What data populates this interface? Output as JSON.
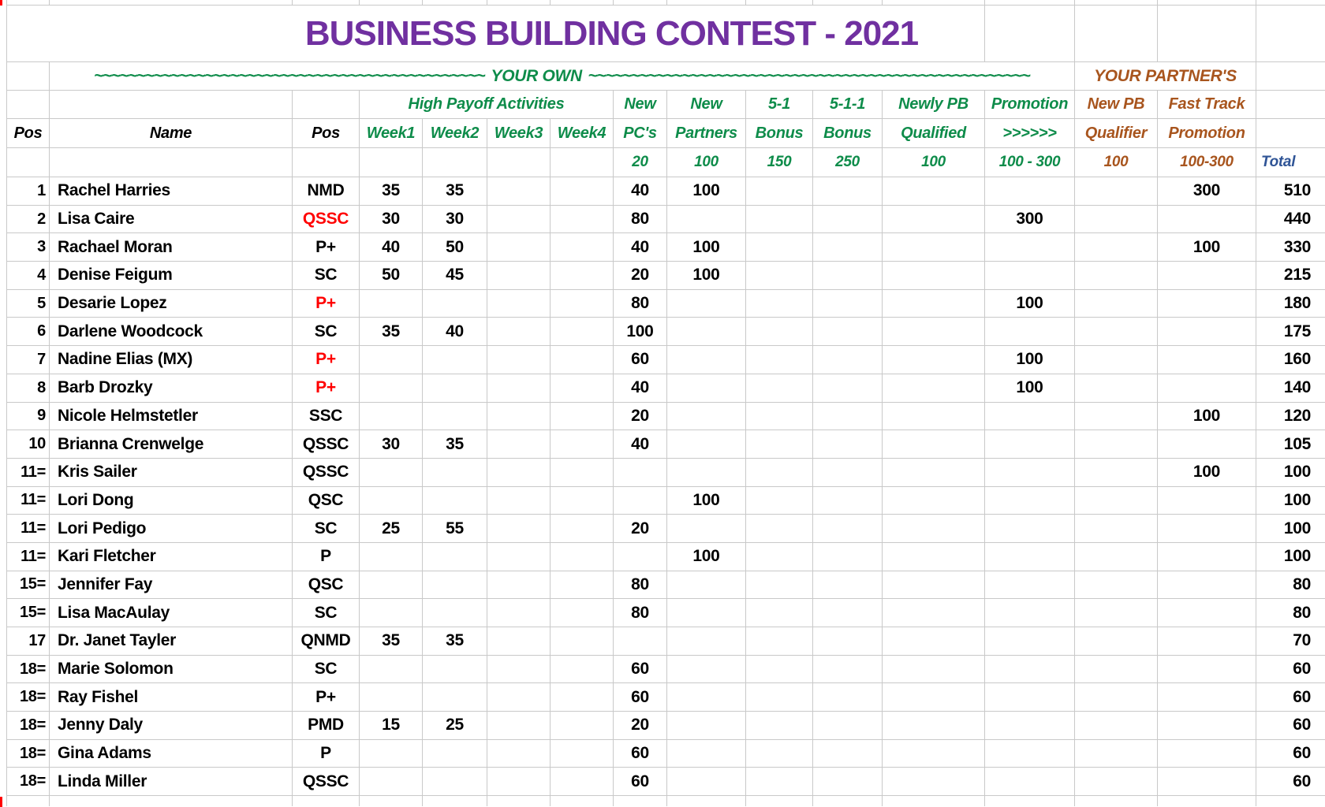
{
  "title": "BUSINESS BUILDING CONTEST - 2021",
  "colors": {
    "title_purple": "#7030A0",
    "accent_green": "#0E8C4A",
    "accent_brown": "#A8551E",
    "total_blue": "#2F5496",
    "alert_red": "#FF0000",
    "gridline_gray": "#C9C9C9"
  },
  "sections": {
    "your_own": {
      "left_squiggle": "~~~~~~~~~~~~~~~~~~~~~~~~~~~~~~~~~~~~~~~~~~~~~~",
      "label": "YOUR OWN",
      "right_squiggle": "~~~~~~~~~~~~~~~~~~~~~~~~~~~~~~~~~~~~~~~~~~~~~~~~~~~~"
    },
    "your_partners": "YOUR PARTNER'S"
  },
  "header": {
    "pos_rank": "Pos",
    "name": "Name",
    "pos_title": "Pos",
    "high_payoff": "High Payoff Activities",
    "weeks": [
      "Week1",
      "Week2",
      "Week3",
      "Week4"
    ],
    "groups": [
      {
        "line1": "New",
        "line2": "PC's",
        "points": "20",
        "color": "green"
      },
      {
        "line1": "New",
        "line2": "Partners",
        "points": "100",
        "color": "green"
      },
      {
        "line1": "5-1",
        "line2": "Bonus",
        "points": "150",
        "color": "green"
      },
      {
        "line1": "5-1-1",
        "line2": "Bonus",
        "points": "250",
        "color": "green"
      },
      {
        "line1": "Newly PB",
        "line2": "Qualified",
        "points": "100",
        "color": "green"
      },
      {
        "line1": "Promotion",
        "line2": ">>>>>>",
        "points": "100 - 300",
        "color": "green"
      },
      {
        "line1": "New PB",
        "line2": "Qualifier",
        "points": "100",
        "color": "brown"
      },
      {
        "line1": "Fast Track",
        "line2": "Promotion",
        "points": "100-300",
        "color": "brown"
      }
    ],
    "total": "Total"
  },
  "rows": [
    {
      "rank": "1",
      "name": "Rachel Harries",
      "pos": "NMD",
      "w1": "35",
      "w2": "35",
      "pcs": "40",
      "partners": "100",
      "fast": "300",
      "total": "510"
    },
    {
      "rank": "2",
      "name": "Lisa Caire",
      "pos": "QSSC",
      "pos_color": "red",
      "w1": "30",
      "w2": "30",
      "pcs": "80",
      "promo": "300",
      "total": "440"
    },
    {
      "rank": "3",
      "name": "Rachael Moran",
      "pos": "P+",
      "w1": "40",
      "w2": "50",
      "pcs": "40",
      "partners": "100",
      "fast": "100",
      "total": "330"
    },
    {
      "rank": "4",
      "name": "Denise Feigum",
      "pos": "SC",
      "w1": "50",
      "w2": "45",
      "pcs": "20",
      "partners": "100",
      "total": "215"
    },
    {
      "rank": "5",
      "name": "Desarie Lopez",
      "pos": "P+",
      "pos_color": "red",
      "pcs": "80",
      "promo": "100",
      "total": "180"
    },
    {
      "rank": "6",
      "name": "Darlene Woodcock",
      "pos": "SC",
      "w1": "35",
      "w2": "40",
      "pcs": "100",
      "total": "175"
    },
    {
      "rank": "7",
      "name": "Nadine Elias (MX)",
      "pos": "P+",
      "pos_color": "red",
      "pcs": "60",
      "promo": "100",
      "total": "160"
    },
    {
      "rank": "8",
      "name": "Barb Drozky",
      "pos": "P+",
      "pos_color": "red",
      "pcs": "40",
      "promo": "100",
      "total": "140"
    },
    {
      "rank": "9",
      "name": "Nicole Helmstetler",
      "pos": "SSC",
      "pcs": "20",
      "fast": "100",
      "total": "120"
    },
    {
      "rank": "10",
      "name": "Brianna Crenwelge",
      "pos": "QSSC",
      "w1": "30",
      "w2": "35",
      "pcs": "40",
      "total": "105"
    },
    {
      "rank": "11=",
      "name": "Kris Sailer",
      "pos": "QSSC",
      "fast": "100",
      "total": "100"
    },
    {
      "rank": "11=",
      "name": "Lori Dong",
      "pos": "QSC",
      "partners": "100",
      "total": "100"
    },
    {
      "rank": "11=",
      "name": "Lori Pedigo",
      "pos": "SC",
      "w1": "25",
      "w2": "55",
      "pcs": "20",
      "total": "100"
    },
    {
      "rank": "11=",
      "name": "Kari Fletcher",
      "pos": "P",
      "partners": "100",
      "total": "100"
    },
    {
      "rank": "15=",
      "name": "Jennifer Fay",
      "pos": "QSC",
      "pcs": "80",
      "total": "80"
    },
    {
      "rank": "15=",
      "name": "Lisa MacAulay",
      "pos": "SC",
      "pcs": "80",
      "total": "80"
    },
    {
      "rank": "17",
      "name": "Dr. Janet Tayler",
      "pos": "QNMD",
      "w1": "35",
      "w2": "35",
      "total": "70"
    },
    {
      "rank": "18=",
      "name": "Marie Solomon",
      "pos": "SC",
      "pcs": "60",
      "total": "60"
    },
    {
      "rank": "18=",
      "name": "Ray Fishel",
      "pos": "P+",
      "pcs": "60",
      "total": "60"
    },
    {
      "rank": "18=",
      "name": "Jenny Daly",
      "pos": "PMD",
      "w1": "15",
      "w2": "25",
      "pcs": "20",
      "total": "60"
    },
    {
      "rank": "18=",
      "name": "Gina Adams",
      "pos": "P",
      "pcs": "60",
      "total": "60"
    },
    {
      "rank": "18=",
      "name": "Linda Miller",
      "pos": "QSSC",
      "pcs": "60",
      "total": "60"
    }
  ]
}
